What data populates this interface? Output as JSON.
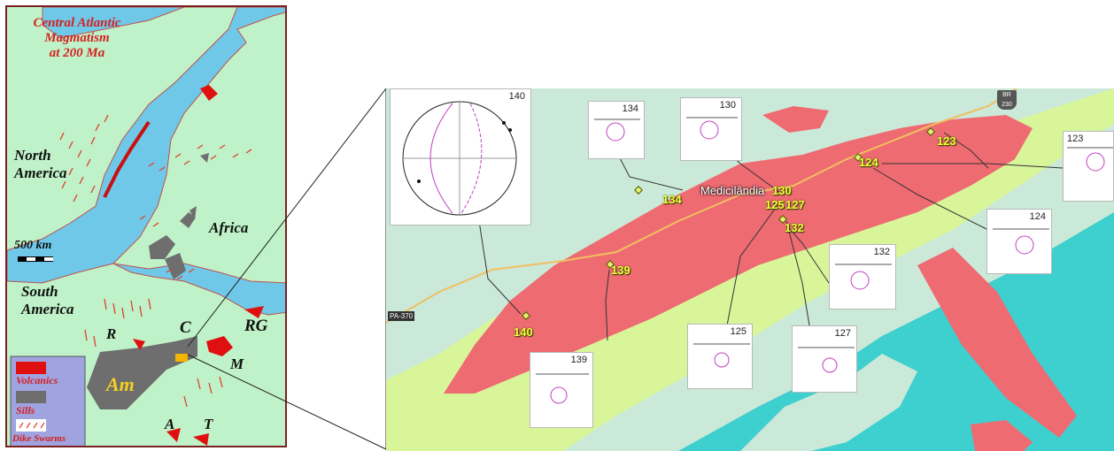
{
  "left_map": {
    "title": [
      "Central Atlantic",
      "Magmatism",
      "at 200 Ma"
    ],
    "labels": {
      "north_america": [
        "North",
        "America"
      ],
      "africa": "Africa",
      "south_america": [
        "South",
        "America"
      ],
      "scale": "500 km",
      "r": "R",
      "c": "C",
      "rg": "RG",
      "m": "M",
      "am": "Am",
      "a": "A",
      "t": "T"
    },
    "legend": {
      "volcanics": "Volcanics",
      "sills": "Sills",
      "dike_swarms": "Dike Swarms"
    },
    "colors": {
      "land": "#bff2c8",
      "ocean": "#6fc8e8",
      "volcanics": "#e01010",
      "sills": "#6e6e6e",
      "dikes": "#e0402a",
      "highlight": "#f5b400"
    }
  },
  "right_map": {
    "town": "Medicilândia",
    "road_shield": "BR 230",
    "road_sign_left": "PA-370",
    "sites": [
      "134",
      "130",
      "125",
      "127",
      "132",
      "124",
      "123",
      "139",
      "140"
    ],
    "insets": {
      "stereonet_large": "140",
      "i134": "134",
      "i130": "130",
      "i123": "123",
      "i124": "124",
      "i132": "132",
      "i125": "125",
      "i127": "127",
      "i139": "139"
    },
    "colors": {
      "dikes_unit": "#ef6b72",
      "water": "#3ecfcf",
      "pale": "#cbe9d8",
      "lime": "#d9f59a",
      "road": "#f0c060"
    }
  }
}
